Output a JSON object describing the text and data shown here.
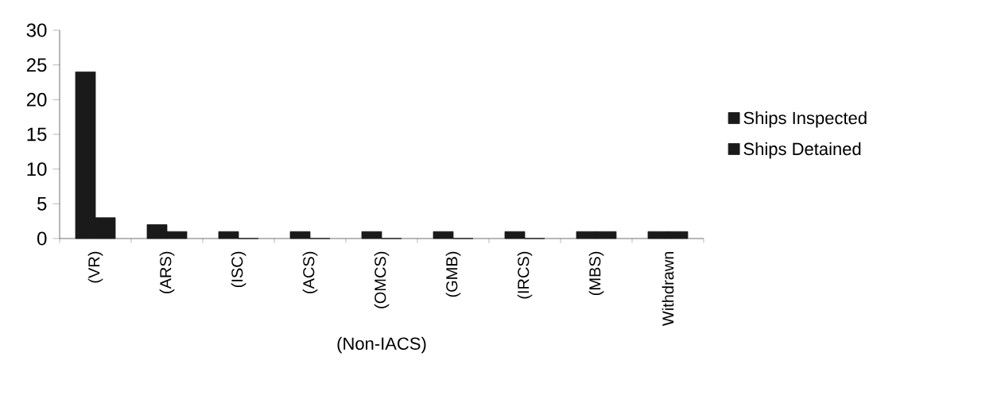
{
  "chart_data": {
    "type": "bar",
    "xlabel": "(Non-IACS)",
    "categories": [
      "(VR)",
      "(ARS)",
      "(ISC)",
      "(ACS)",
      "(OMCS)",
      "(GMB)",
      "(IRCS)",
      "(MBS)",
      "Withdrawn"
    ],
    "series": [
      {
        "name": "Ships Inspected",
        "color": "#1a1a1a",
        "values": [
          24,
          2,
          1,
          1,
          1,
          1,
          1,
          1,
          1
        ]
      },
      {
        "name": "Ships Detained",
        "color": "#1a1a1a",
        "values": [
          3,
          1,
          0,
          0,
          0,
          0,
          0,
          1,
          1
        ]
      }
    ],
    "ylim": [
      0,
      30
    ],
    "yticks": [
      0,
      5,
      10,
      15,
      20,
      25,
      30
    ],
    "grid": false,
    "legend": "right"
  }
}
